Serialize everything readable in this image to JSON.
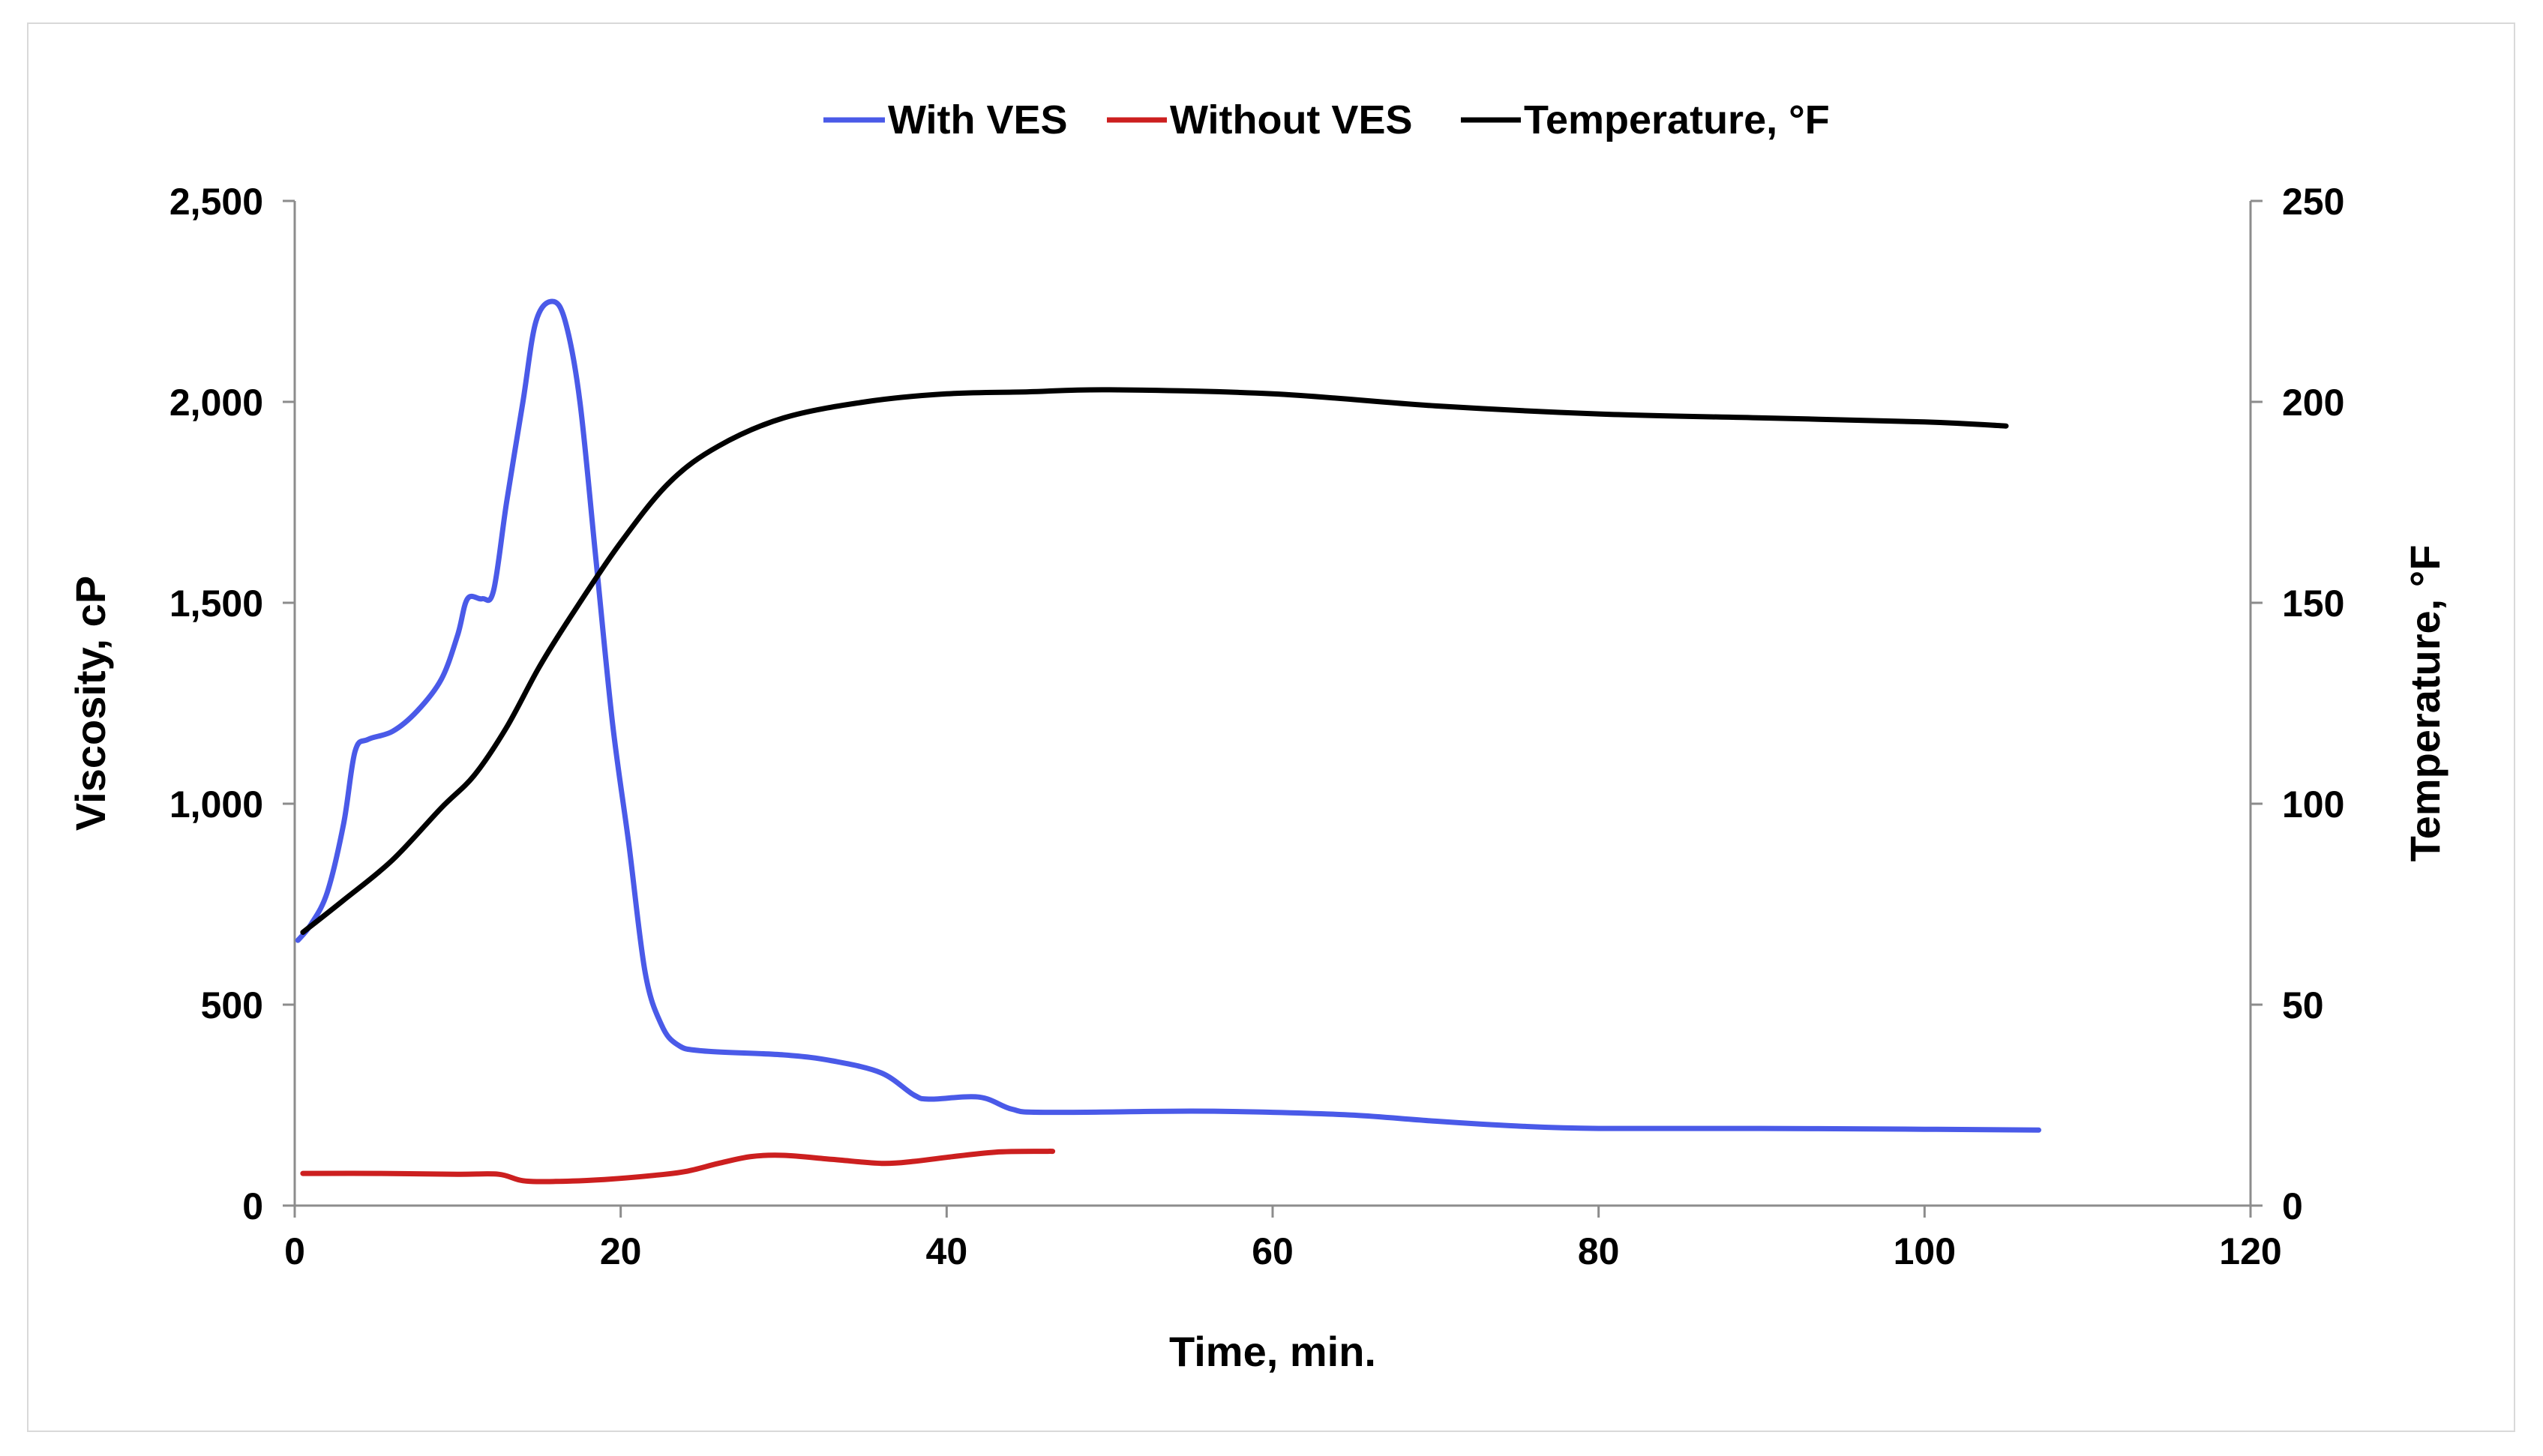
{
  "chart_data": {
    "type": "line",
    "title": "",
    "xlabel": "Time, min.",
    "ylabel": "Viscosity, cP",
    "y2label": "Temperature, °F",
    "xlim": [
      0,
      120
    ],
    "ylim": [
      0,
      2500
    ],
    "y2lim": [
      0,
      250
    ],
    "xticks": [
      0,
      20,
      40,
      60,
      80,
      100,
      120
    ],
    "yticks": [
      0,
      500,
      1000,
      1500,
      2000,
      2500
    ],
    "y2ticks": [
      0,
      50,
      100,
      150,
      200,
      250
    ],
    "xtick_labels": [
      "0",
      "20",
      "40",
      "60",
      "80",
      "100",
      "120"
    ],
    "ytick_labels": [
      "0",
      "500",
      "1,000",
      "1,500",
      "2,000",
      "2,500"
    ],
    "y2tick_labels": [
      "0",
      "50",
      "100",
      "150",
      "200",
      "250"
    ],
    "legend_position": "top-center",
    "grid": false,
    "series": [
      {
        "name": "With VES",
        "color": "#4a5ae8",
        "axis": "left",
        "points": [
          [
            0.2,
            660
          ],
          [
            1,
            700
          ],
          [
            2,
            780
          ],
          [
            3,
            950
          ],
          [
            3.7,
            1130
          ],
          [
            4.5,
            1160
          ],
          [
            6,
            1180
          ],
          [
            7.5,
            1230
          ],
          [
            9,
            1310
          ],
          [
            10,
            1420
          ],
          [
            10.6,
            1510
          ],
          [
            11.5,
            1510
          ],
          [
            12.2,
            1530
          ],
          [
            13,
            1750
          ],
          [
            14,
            2000
          ],
          [
            14.8,
            2200
          ],
          [
            15.8,
            2250
          ],
          [
            16.6,
            2200
          ],
          [
            17.5,
            2000
          ],
          [
            18.5,
            1600
          ],
          [
            19.5,
            1200
          ],
          [
            20.5,
            900
          ],
          [
            21.5,
            580
          ],
          [
            22.5,
            450
          ],
          [
            23.5,
            400
          ],
          [
            25,
            385
          ],
          [
            30,
            375
          ],
          [
            33,
            360
          ],
          [
            36,
            330
          ],
          [
            38,
            275
          ],
          [
            39,
            265
          ],
          [
            42,
            270
          ],
          [
            44,
            240
          ],
          [
            46,
            232
          ],
          [
            55,
            235
          ],
          [
            60,
            232
          ],
          [
            65,
            225
          ],
          [
            70,
            210
          ],
          [
            75,
            198
          ],
          [
            80,
            192
          ],
          [
            90,
            192
          ],
          [
            100,
            190
          ],
          [
            107,
            188
          ]
        ]
      },
      {
        "name": "Without VES",
        "color": "#cc1f1f",
        "axis": "left",
        "points": [
          [
            0.5,
            80
          ],
          [
            5,
            80
          ],
          [
            10,
            78
          ],
          [
            12.5,
            78
          ],
          [
            14,
            62
          ],
          [
            16,
            60
          ],
          [
            19,
            65
          ],
          [
            22,
            75
          ],
          [
            24,
            85
          ],
          [
            26,
            105
          ],
          [
            28,
            122
          ],
          [
            30,
            125
          ],
          [
            33,
            115
          ],
          [
            36,
            105
          ],
          [
            38,
            110
          ],
          [
            40,
            120
          ],
          [
            43,
            133
          ],
          [
            46,
            135
          ],
          [
            46.5,
            135
          ]
        ]
      },
      {
        "name": "Temperature, °F",
        "color": "#000000",
        "axis": "right",
        "points": [
          [
            0.5,
            68
          ],
          [
            3,
            76
          ],
          [
            6,
            86
          ],
          [
            9,
            99
          ],
          [
            11,
            107
          ],
          [
            13,
            119
          ],
          [
            15,
            134
          ],
          [
            17,
            147
          ],
          [
            20,
            165
          ],
          [
            23,
            180
          ],
          [
            26,
            189
          ],
          [
            30,
            196
          ],
          [
            35,
            200
          ],
          [
            40,
            202
          ],
          [
            45,
            202.5
          ],
          [
            50,
            203
          ],
          [
            60,
            202
          ],
          [
            70,
            199
          ],
          [
            80,
            197
          ],
          [
            90,
            196
          ],
          [
            100,
            195
          ],
          [
            105,
            194
          ]
        ]
      }
    ]
  }
}
